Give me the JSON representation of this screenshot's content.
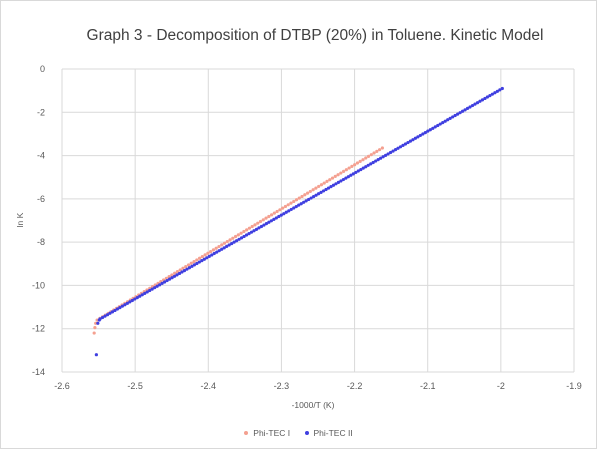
{
  "chart_data": {
    "type": "scatter",
    "title": "Graph 3 - Decomposition of DTBP (20%) in Toluene. Kinetic Model",
    "xlabel": "-1000/T (K)",
    "ylabel": "ln K",
    "xlim": [
      -2.6,
      -1.9
    ],
    "ylim": [
      -14,
      0
    ],
    "xticks": [
      "-2.6",
      "-2.5",
      "-2.4",
      "-2.3",
      "-2.2",
      "-2.1",
      "-2",
      "-1.9"
    ],
    "yticks": [
      "0",
      "-2",
      "-4",
      "-6",
      "-8",
      "-10",
      "-12",
      "-14"
    ],
    "grid": true,
    "legend_position": "bottom",
    "series": [
      {
        "name": "Phi-TEC I",
        "color": "#f4a090",
        "line": {
          "x_start": -2.552,
          "y_start": -11.6,
          "x_end": -2.162,
          "y_end": -3.65,
          "step": 0.0038
        },
        "extra_points": [
          {
            "x": -2.556,
            "y": -12.2
          },
          {
            "x": -2.555,
            "y": -11.95
          },
          {
            "x": -2.554,
            "y": -11.75
          }
        ]
      },
      {
        "name": "Phi-TEC II",
        "color": "#3f3fe0",
        "line": {
          "x_start": -2.548,
          "y_start": -11.55,
          "x_end": -1.998,
          "y_end": -0.9,
          "step": 0.0034
        },
        "extra_points": [
          {
            "x": -2.553,
            "y": -13.2
          },
          {
            "x": -2.551,
            "y": -11.75
          },
          {
            "x": -2.549,
            "y": -11.6
          }
        ]
      }
    ]
  }
}
